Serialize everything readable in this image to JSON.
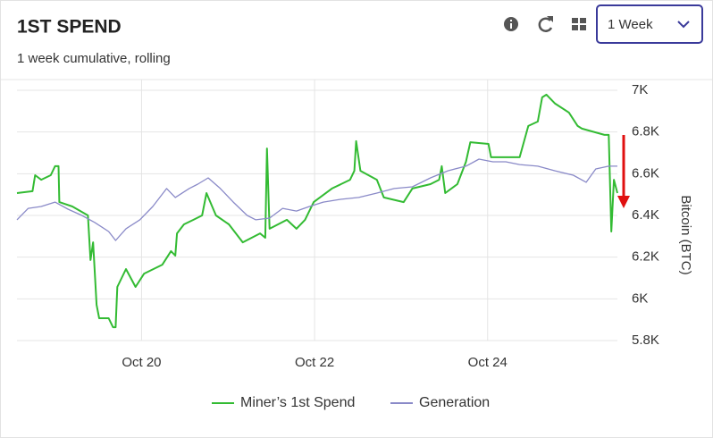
{
  "period": "1 Week",
  "chart_data": {
    "type": "line",
    "title": "1ST SPEND",
    "subtitle": "1 week cumulative, rolling",
    "y_label": "Bitcoin (BTC)",
    "xlim": [
      18.56,
      25.5
    ],
    "xticks": [
      {
        "value": 20,
        "label": "Oct 20"
      },
      {
        "value": 22,
        "label": "Oct 22"
      },
      {
        "value": 24,
        "label": "Oct 24"
      }
    ],
    "ylim": [
      5800,
      7000
    ],
    "yticks": [
      {
        "value": 5800,
        "label": "5.8K"
      },
      {
        "value": 6000,
        "label": "6K"
      },
      {
        "value": 6200,
        "label": "6.2K"
      },
      {
        "value": 6400,
        "label": "6.4K"
      },
      {
        "value": 6600,
        "label": "6.6K"
      },
      {
        "value": 6800,
        "label": "6.8K"
      },
      {
        "value": 7000,
        "label": "7K"
      }
    ],
    "grid": true,
    "legend": "bottom",
    "series": [
      {
        "name": "Miner’s 1st Spend",
        "color": "#33bb33",
        "x": [
          18.56,
          18.74,
          18.77,
          18.84,
          18.95,
          19.0,
          19.04,
          19.05,
          19.2,
          19.38,
          19.41,
          19.44,
          19.48,
          19.51,
          19.62,
          19.67,
          19.7,
          19.72,
          19.82,
          19.93,
          20.03,
          20.24,
          20.34,
          20.39,
          20.41,
          20.49,
          20.6,
          20.7,
          20.75,
          20.86,
          21.01,
          21.17,
          21.37,
          21.43,
          21.45,
          21.48,
          21.68,
          21.79,
          21.89,
          21.99,
          22.2,
          22.41,
          22.46,
          22.48,
          22.53,
          22.72,
          22.8,
          23.03,
          23.13,
          23.34,
          23.44,
          23.47,
          23.51,
          23.65,
          23.75,
          23.8,
          24.01,
          24.04,
          24.32,
          24.37,
          24.47,
          24.58,
          24.63,
          24.68,
          24.78,
          24.94,
          25.04,
          25.09,
          25.35,
          25.4,
          25.43,
          25.46,
          25.5
        ],
        "values": [
          6507,
          6516,
          6593,
          6571,
          6593,
          6636,
          6636,
          6464,
          6443,
          6400,
          6186,
          6271,
          5971,
          5907,
          5907,
          5864,
          5864,
          6057,
          6143,
          6057,
          6121,
          6164,
          6229,
          6207,
          6314,
          6357,
          6379,
          6400,
          6507,
          6400,
          6357,
          6271,
          6314,
          6293,
          6721,
          6336,
          6379,
          6336,
          6379,
          6464,
          6529,
          6571,
          6614,
          6756,
          6614,
          6571,
          6486,
          6464,
          6529,
          6550,
          6571,
          6636,
          6507,
          6550,
          6657,
          6751,
          6743,
          6679,
          6679,
          6679,
          6829,
          6850,
          6966,
          6979,
          6936,
          6893,
          6829,
          6816,
          6786,
          6786,
          6323,
          6571,
          6507
        ]
      },
      {
        "name": "Generation",
        "color": "#8a8ac8",
        "x": [
          18.56,
          18.69,
          18.84,
          19.0,
          19.15,
          19.31,
          19.46,
          19.62,
          19.7,
          19.82,
          19.98,
          20.13,
          20.29,
          20.39,
          20.55,
          20.65,
          20.77,
          20.91,
          21.06,
          21.22,
          21.32,
          21.48,
          21.63,
          21.79,
          21.94,
          22.1,
          22.3,
          22.51,
          22.72,
          22.92,
          23.13,
          23.34,
          23.54,
          23.75,
          23.9,
          24.06,
          24.21,
          24.37,
          24.58,
          24.78,
          24.99,
          25.14,
          25.25,
          25.4,
          25.5
        ],
        "values": [
          6379,
          6434,
          6443,
          6464,
          6430,
          6400,
          6366,
          6323,
          6280,
          6336,
          6379,
          6443,
          6529,
          6486,
          6529,
          6550,
          6580,
          6529,
          6464,
          6400,
          6379,
          6387,
          6434,
          6421,
          6443,
          6464,
          6477,
          6486,
          6507,
          6529,
          6537,
          6580,
          6614,
          6636,
          6670,
          6657,
          6657,
          6644,
          6636,
          6614,
          6593,
          6559,
          6623,
          6636,
          6636
        ]
      }
    ]
  }
}
